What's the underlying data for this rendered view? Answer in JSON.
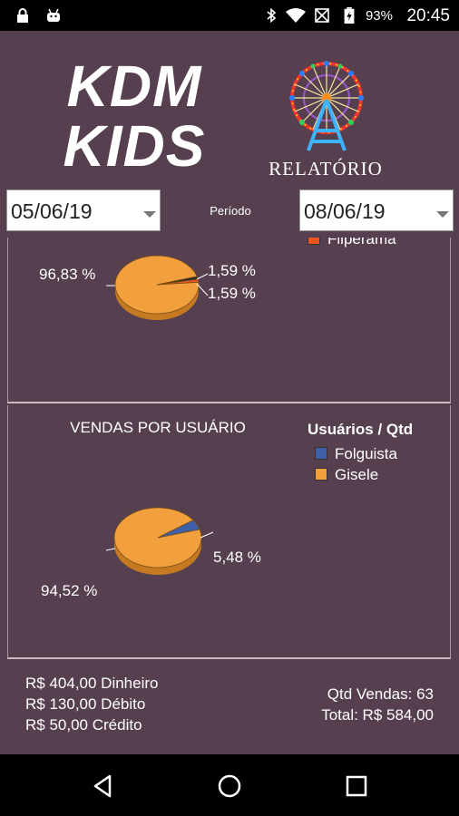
{
  "status_bar": {
    "time": "20:45",
    "battery_percent": "93%",
    "icons": [
      "lock-icon",
      "android-icon",
      "bluetooth-icon",
      "wifi-icon",
      "signal-off-icon",
      "battery-charging-icon"
    ]
  },
  "header": {
    "logo_line1": "KDM",
    "logo_line2": "KIDS",
    "subtitle": "RELATÓRIO"
  },
  "filters": {
    "start_date": "05/06/19",
    "period_label": "Período",
    "end_date": "08/06/19"
  },
  "chart_data": [
    {
      "type": "pie",
      "title": "",
      "legend_visible": [
        "Fliperama"
      ],
      "slices": [
        {
          "label": "96,83 %",
          "value": 96.83,
          "color": "#f2a03d"
        },
        {
          "label": "1,59 %",
          "value": 1.59,
          "color": "#2a2a2a"
        },
        {
          "label": "1,59 %",
          "value": 1.59,
          "color": "#e8561e"
        }
      ]
    },
    {
      "type": "pie",
      "title": "VENDAS POR USUÁRIO",
      "legend_title": "Usuários / Qtd",
      "legend_placement": "top-right",
      "legend": [
        {
          "name": "Folguista",
          "color": "#3f5fa6"
        },
        {
          "name": "Gisele",
          "color": "#f2a03d"
        }
      ],
      "slices": [
        {
          "label": "94,52 %",
          "value": 94.52,
          "color": "#f2a03d"
        },
        {
          "label": "5,48 %",
          "value": 5.48,
          "color": "#3f5fa6"
        }
      ]
    }
  ],
  "summary": {
    "cash": "R$ 404,00 Dinheiro",
    "debit": "R$ 130,00 Débito",
    "credit": "R$ 50,00 Crédito",
    "sales_count": "Qtd Vendas: 63",
    "total": "Total: R$ 584,00"
  },
  "colors": {
    "background": "#56404f",
    "orange": "#f2a03d",
    "blue": "#3f5fa6"
  }
}
